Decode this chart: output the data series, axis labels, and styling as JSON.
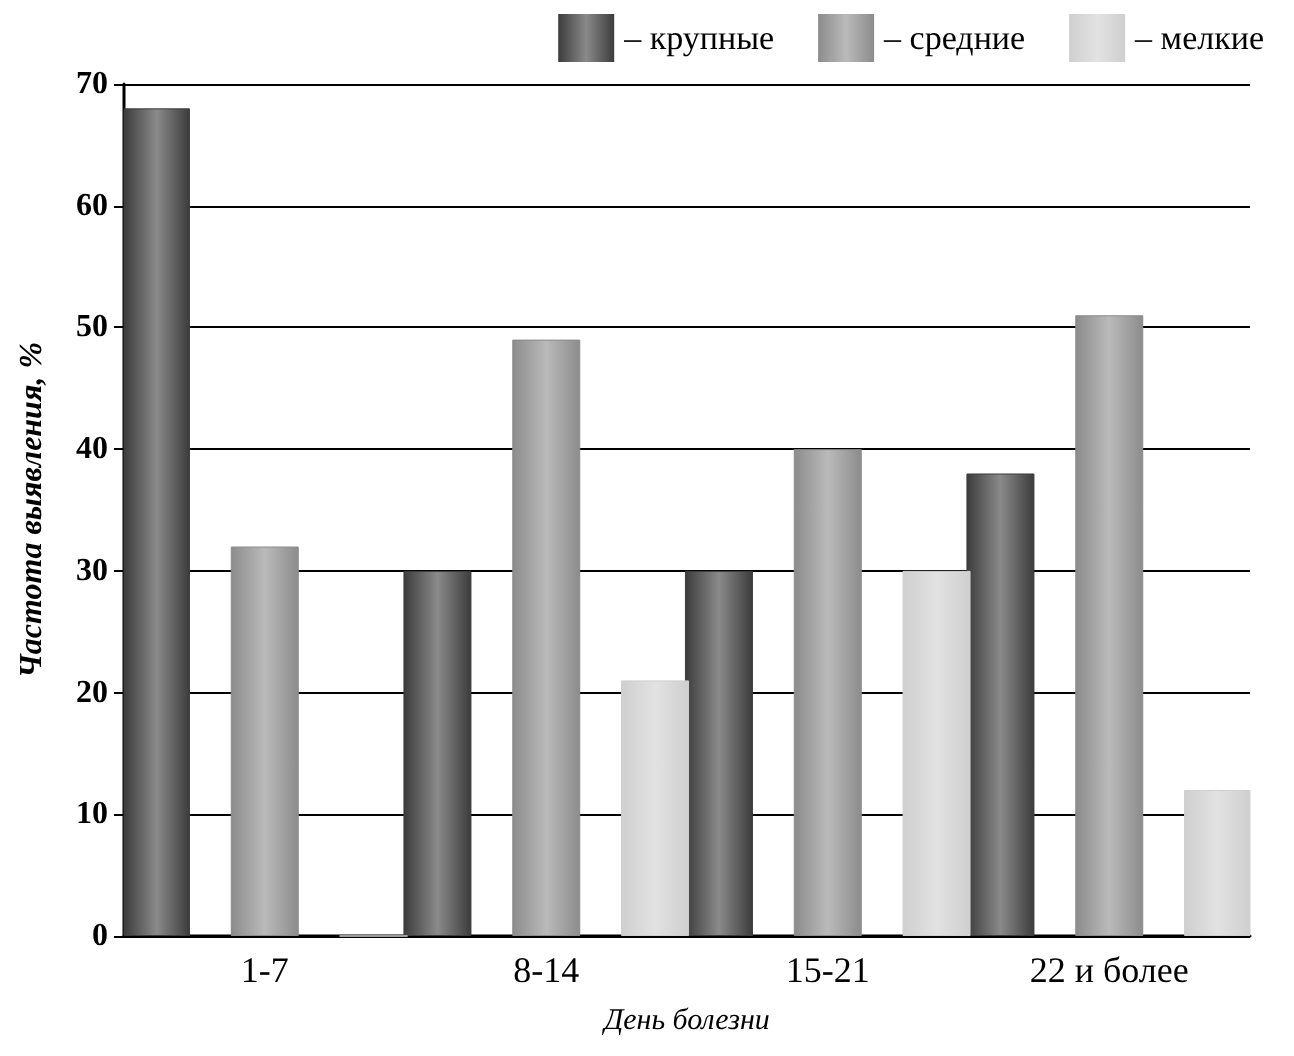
{
  "chart_data": {
    "type": "bar",
    "xlabel": "День болезни",
    "ylabel": "Частота выявления, %",
    "categories": [
      "1-7",
      "8-14",
      "15-21",
      "22 и более"
    ],
    "series": [
      {
        "name": "– крупные",
        "color": "#3c3c3c",
        "values": [
          68,
          30,
          30,
          38
        ]
      },
      {
        "name": "– средние",
        "color": "#8c8c8c",
        "values": [
          32,
          49,
          40,
          51
        ]
      },
      {
        "name": "– мелкие",
        "color": "#cfcfcf",
        "values": [
          0,
          21,
          30,
          12
        ]
      }
    ],
    "ylim": [
      0,
      70
    ],
    "yticks": [
      0,
      10,
      20,
      30,
      40,
      50,
      60,
      70
    ],
    "grid": "y",
    "legend": "top right"
  }
}
